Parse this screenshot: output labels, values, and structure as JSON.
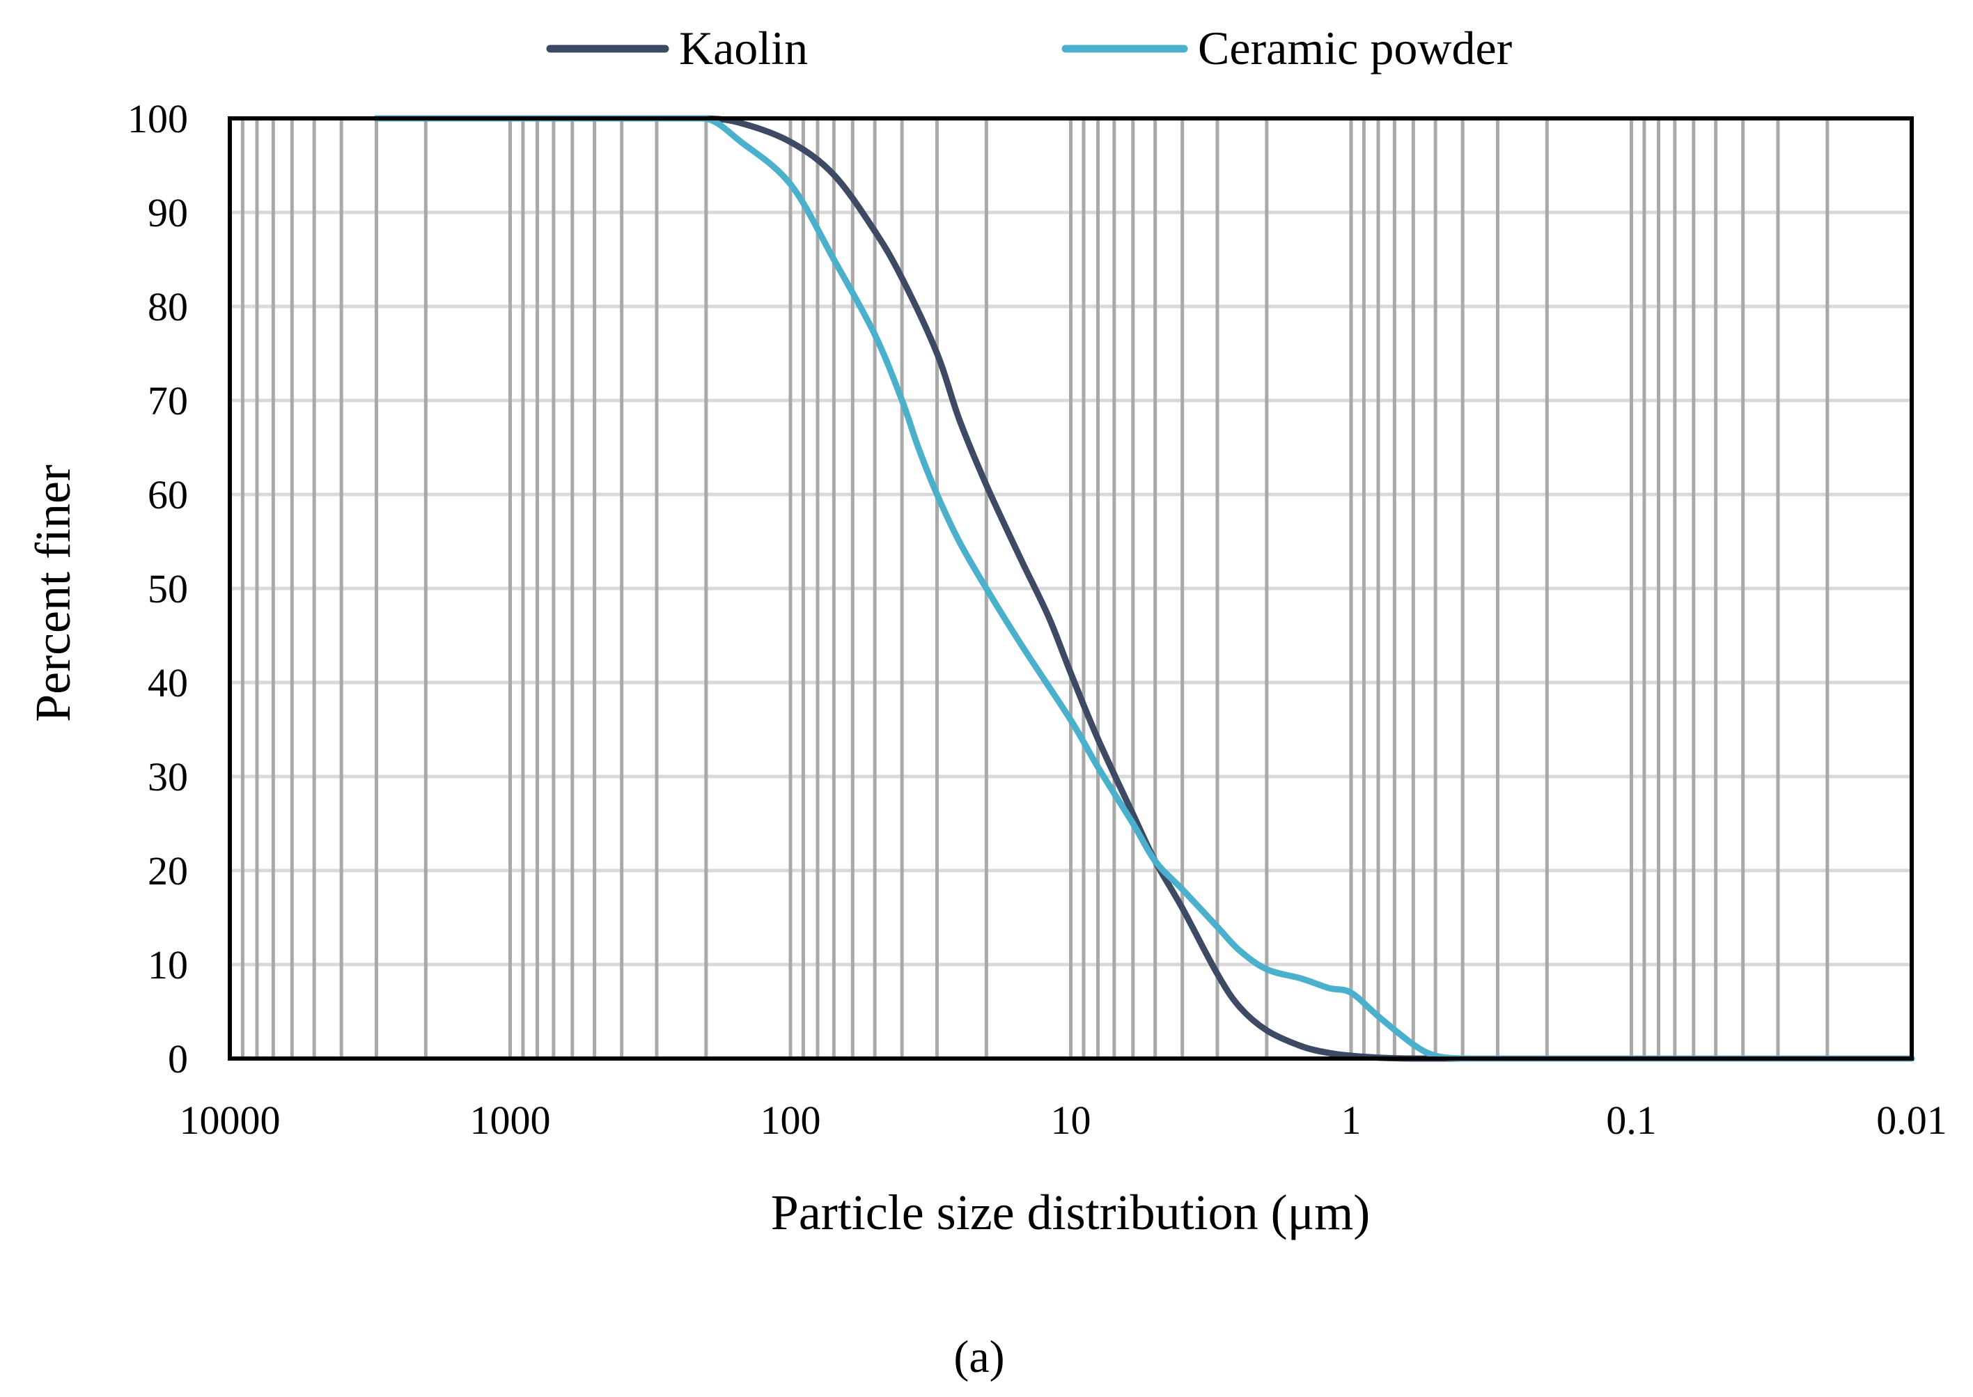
{
  "chart_data": {
    "type": "line",
    "title": "",
    "xlabel": "Particle size distribution (μm)",
    "ylabel": "Percent finer",
    "x_scale": "log",
    "x_reversed": true,
    "xlim": [
      10000,
      0.01
    ],
    "ylim": [
      0,
      100
    ],
    "x_ticks": [
      10000,
      1000,
      100,
      10,
      1,
      0.1,
      0.01
    ],
    "x_tick_labels": [
      "10000",
      "1000",
      "100",
      "10",
      "1",
      "0.1",
      "0.01"
    ],
    "y_ticks": [
      0,
      10,
      20,
      30,
      40,
      50,
      60,
      70,
      80,
      90,
      100
    ],
    "y_tick_labels": [
      "0",
      "10",
      "20",
      "30",
      "40",
      "50",
      "60",
      "70",
      "80",
      "90",
      "100"
    ],
    "grid": true,
    "legend_position": "top",
    "panel_label": "(a)",
    "colors": {
      "kaolin": "#3d4a63",
      "ceramic": "#4bb0cc",
      "grid": "#a9a9a9",
      "frame": "#000000"
    },
    "series": [
      {
        "name": "Kaolin",
        "x": [
          3000,
          1000,
          300,
          200,
          150,
          100,
          70,
          50,
          40,
          30,
          25,
          20,
          15,
          12,
          10,
          8,
          6,
          5,
          4,
          3,
          2.5,
          2,
          1.5,
          1.2,
          1,
          0.8,
          0.6,
          0.4,
          0.3,
          0.2,
          0.1,
          0.01
        ],
        "y": [
          100,
          100,
          100,
          100,
          99.5,
          97.5,
          94,
          88,
          83,
          75,
          68,
          61,
          53,
          47,
          41,
          34,
          26,
          21,
          16,
          9,
          5.5,
          3,
          1.3,
          0.6,
          0.3,
          0.1,
          0,
          0,
          0,
          0,
          0,
          0
        ]
      },
      {
        "name": "Ceramic powder",
        "x": [
          3000,
          1000,
          300,
          200,
          150,
          100,
          70,
          50,
          40,
          35,
          30,
          25,
          20,
          15,
          10,
          8,
          6,
          5,
          4,
          3,
          2.5,
          2,
          1.5,
          1.2,
          1,
          0.8,
          0.6,
          0.5,
          0.4,
          0.3,
          0.2,
          0.1,
          0.01
        ],
        "y": [
          100,
          100,
          100,
          100,
          97.5,
          93,
          85,
          77,
          70,
          65,
          60,
          55,
          50,
          44,
          36,
          31,
          25,
          21,
          18,
          14,
          11.5,
          9.5,
          8.5,
          7.5,
          7,
          4.5,
          1.5,
          0.3,
          0,
          0,
          0,
          0,
          0
        ]
      }
    ]
  }
}
